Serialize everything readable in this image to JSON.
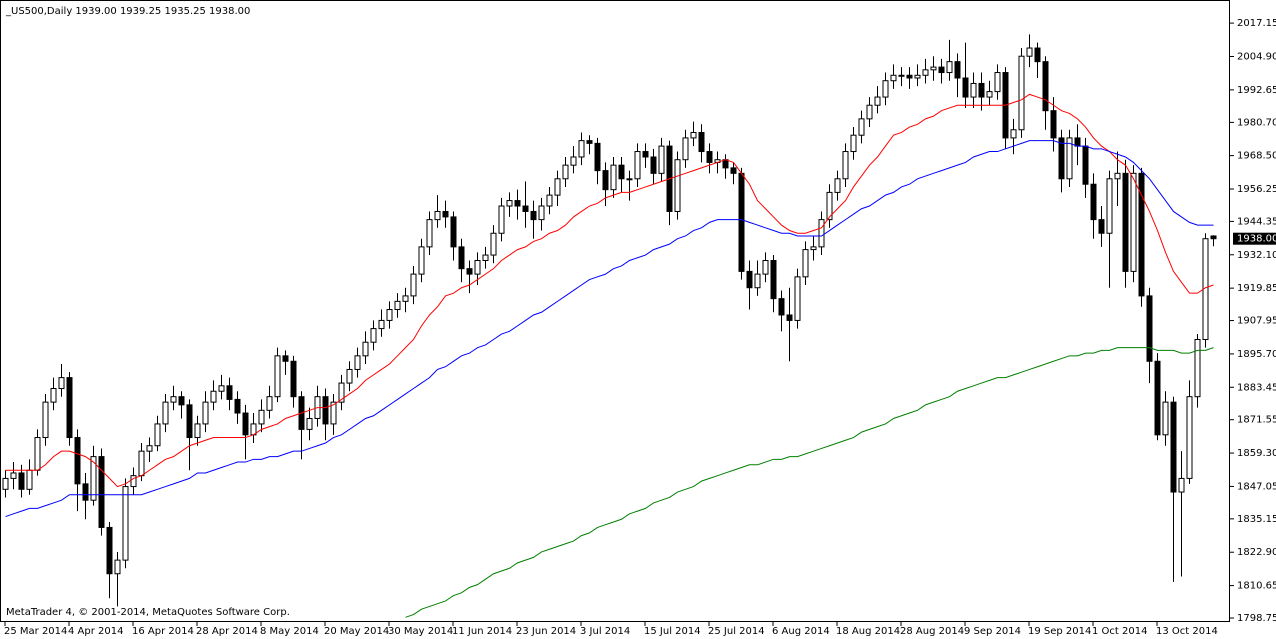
{
  "chart_data": {
    "type": "candlestick",
    "title": "_US500,Daily  1939.00 1939.25 1935.25 1938.00",
    "footnote": "MetaTrader 4, © 2001-2014, MetaQuotes Software Corp.",
    "bull_color": "#ffffff",
    "bear_color": "#000000",
    "ylim": [
      1797.65,
      2024.9
    ],
    "yticks": [
      2017.15,
      {
        "value": 2004.9,
        "label": "2004.90"
      },
      1992.65,
      {
        "value": 1980.7,
        "label": "1980.70"
      },
      {
        "value": 1968.5,
        "label": "1968.50"
      },
      1956.25,
      1944.35,
      {
        "value": 1932.1,
        "label": "1932.10"
      },
      1919.85,
      1907.95,
      {
        "value": 1895.7,
        "label": "1895.70"
      },
      1883.45,
      1871.55,
      {
        "value": 1859.3,
        "label": "1859.30"
      },
      1847.05,
      1835.15,
      {
        "value": 1822.9,
        "label": "1822.90"
      },
      1810.65,
      1798.75
    ],
    "last_price": {
      "value": 1938,
      "label": "1938.00"
    },
    "categories": [
      "25 Mar 2014",
      null,
      null,
      null,
      null,
      null,
      null,
      null,
      "4 Apr 2014",
      null,
      null,
      null,
      null,
      null,
      null,
      null,
      "16 Apr 2014",
      null,
      null,
      null,
      null,
      null,
      null,
      null,
      "28 Apr 2014",
      null,
      null,
      null,
      null,
      null,
      null,
      null,
      "8 May 2014",
      null,
      null,
      null,
      null,
      null,
      null,
      null,
      "20 May 2014",
      null,
      null,
      null,
      null,
      null,
      null,
      null,
      "30 May 2014",
      null,
      null,
      null,
      null,
      null,
      null,
      null,
      "11 Jun 2014",
      null,
      null,
      null,
      null,
      null,
      null,
      null,
      "23 Jun 2014",
      null,
      null,
      null,
      null,
      null,
      null,
      null,
      "3 Jul 2014",
      null,
      null,
      null,
      null,
      null,
      null,
      null,
      "15 Jul 2014",
      null,
      null,
      null,
      null,
      null,
      null,
      null,
      "25 Jul 2014",
      null,
      null,
      null,
      null,
      null,
      null,
      null,
      "6 Aug 2014",
      null,
      null,
      null,
      null,
      null,
      null,
      null,
      "18 Aug 2014",
      null,
      null,
      null,
      null,
      null,
      null,
      null,
      "28 Aug 2014",
      null,
      null,
      null,
      null,
      null,
      null,
      null,
      "9 Sep 2014",
      null,
      null,
      null,
      null,
      null,
      null,
      null,
      "19 Sep 2014",
      null,
      null,
      null,
      null,
      null,
      null,
      null,
      "1 Oct 2014",
      null,
      null,
      null,
      null,
      null,
      null,
      null,
      "13 Oct 2014",
      null,
      null,
      null,
      null,
      null,
      null,
      null
    ],
    "open": [
      1846,
      1850,
      1852,
      1846,
      1853,
      1865,
      1878,
      1883,
      1887,
      1865,
      1848,
      1842,
      1858,
      1832,
      1815,
      1820,
      1847,
      1851,
      1860,
      1862,
      1870,
      1878,
      1880,
      1877,
      1865,
      1870,
      1878,
      1882,
      1884,
      1879,
      1874,
      1866,
      1870,
      1875,
      1880,
      1895,
      1893,
      1880,
      1868,
      1872,
      1880,
      1870,
      1878,
      1885,
      1890,
      1895,
      1900,
      1905,
      1908,
      1912,
      1915,
      1917,
      1925,
      1935,
      1945,
      1948,
      1946,
      1935,
      1927,
      1925,
      1930,
      1932,
      1940,
      1950,
      1952,
      1950,
      1948,
      1945,
      1950,
      1954,
      1960,
      1965,
      1968,
      1974,
      1973,
      1963,
      1956,
      1965,
      1960,
      1960,
      1970,
      1968,
      1962,
      1972,
      1948,
      1967,
      1975,
      1977,
      1970,
      1966,
      1967,
      1964,
      1962,
      1926,
      1920,
      1925,
      1930,
      1916,
      1910,
      1908,
      1924,
      1934,
      1935,
      1945,
      1955,
      1960,
      1970,
      1976,
      1982,
      1987,
      1990,
      1996,
      1998,
      1998,
      1997,
      1998,
      2000,
      2001,
      1999,
      2003,
      1997,
      1990,
      1995,
      1990,
      1992,
      1999,
      1975,
      1978,
      2005,
      2008,
      2003,
      1985,
      1975,
      1960,
      1975,
      1972,
      1958,
      1945,
      1940,
      1960,
      1962,
      1926,
      1962,
      1917,
      1893,
      1866,
      1878,
      1845,
      1850,
      1880,
      1901,
      1939
    ],
    "high": [
      1853,
      1856,
      1855,
      1857,
      1868,
      1881,
      1887,
      1892,
      1889,
      1868,
      1852,
      1862,
      1861,
      1834,
      1823,
      1850,
      1854,
      1863,
      1865,
      1873,
      1881,
      1884,
      1882,
      1879,
      1873,
      1882,
      1886,
      1888,
      1887,
      1882,
      1877,
      1874,
      1879,
      1884,
      1898,
      1897,
      1895,
      1882,
      1876,
      1884,
      1883,
      1881,
      1888,
      1893,
      1898,
      1904,
      1908,
      1912,
      1915,
      1918,
      1920,
      1928,
      1938,
      1948,
      1954,
      1952,
      1948,
      1938,
      1930,
      1933,
      1935,
      1943,
      1953,
      1955,
      1956,
      1959,
      1952,
      1953,
      1957,
      1963,
      1968,
      1972,
      1977,
      1976,
      1975,
      1966,
      1968,
      1968,
      1963,
      1973,
      1973,
      1971,
      1975,
      1974,
      1970,
      1978,
      1981,
      1980,
      1973,
      1970,
      1969,
      1966,
      1964,
      1930,
      1930,
      1933,
      1932,
      1919,
      1920,
      1927,
      1937,
      1939,
      1948,
      1958,
      1963,
      1973,
      1979,
      1985,
      1990,
      1994,
      1999,
      2002,
      2001,
      2001,
      2002,
      2004,
      2005,
      2004,
      2011,
      2006,
      2010,
      1999,
      1999,
      1996,
      2002,
      2001,
      1982,
      2008,
      2013,
      2010,
      2005,
      1990,
      1978,
      1978,
      1980,
      1975,
      1962,
      1950,
      1963,
      1970,
      1967,
      1965,
      1964,
      1920,
      1896,
      1882,
      1880,
      1860,
      1886,
      1903,
      1940,
      1939.25
    ],
    "low": [
      1843,
      1846,
      1843,
      1844,
      1851,
      1862,
      1875,
      1880,
      1862,
      1838,
      1835,
      1840,
      1829,
      1806,
      1803,
      1817,
      1844,
      1849,
      1856,
      1860,
      1867,
      1875,
      1872,
      1853,
      1862,
      1867,
      1875,
      1879,
      1875,
      1870,
      1857,
      1863,
      1867,
      1872,
      1878,
      1888,
      1876,
      1857,
      1864,
      1869,
      1864,
      1866,
      1875,
      1882,
      1887,
      1892,
      1897,
      1902,
      1905,
      1909,
      1911,
      1914,
      1922,
      1932,
      1942,
      1942,
      1930,
      1922,
      1918,
      1921,
      1927,
      1929,
      1937,
      1946,
      1945,
      1942,
      1938,
      1941,
      1947,
      1950,
      1957,
      1962,
      1965,
      1969,
      1958,
      1950,
      1953,
      1955,
      1952,
      1957,
      1964,
      1958,
      1959,
      1943,
      1945,
      1964,
      1972,
      1966,
      1962,
      1962,
      1960,
      1958,
      1923,
      1912,
      1917,
      1922,
      1911,
      1904,
      1893,
      1905,
      1921,
      1930,
      1932,
      1942,
      1952,
      1957,
      1967,
      1973,
      1979,
      1984,
      1987,
      1993,
      1994,
      1993,
      1994,
      1995,
      1996,
      1995,
      1996,
      1990,
      1986,
      1986,
      1985,
      1987,
      1989,
      1971,
      1969,
      1975,
      2001,
      1997,
      1978,
      1970,
      1955,
      1957,
      1965,
      1953,
      1938,
      1935,
      1920,
      1950,
      1920,
      1922,
      1913,
      1885,
      1864,
      1862,
      1812,
      1814,
      1848,
      1876,
      1898,
      1935.25
    ],
    "close": [
      1850,
      1852,
      1846,
      1853,
      1865,
      1878,
      1883,
      1887,
      1865,
      1848,
      1842,
      1858,
      1832,
      1815,
      1820,
      1847,
      1851,
      1860,
      1862,
      1870,
      1878,
      1880,
      1877,
      1865,
      1870,
      1878,
      1882,
      1884,
      1879,
      1874,
      1866,
      1870,
      1875,
      1880,
      1895,
      1893,
      1880,
      1868,
      1872,
      1880,
      1870,
      1878,
      1885,
      1890,
      1895,
      1900,
      1905,
      1908,
      1912,
      1915,
      1917,
      1925,
      1935,
      1945,
      1948,
      1946,
      1935,
      1927,
      1925,
      1930,
      1932,
      1940,
      1950,
      1952,
      1950,
      1948,
      1945,
      1950,
      1954,
      1960,
      1965,
      1968,
      1974,
      1973,
      1963,
      1956,
      1965,
      1960,
      1960,
      1970,
      1968,
      1962,
      1972,
      1948,
      1967,
      1975,
      1977,
      1970,
      1966,
      1967,
      1964,
      1962,
      1926,
      1920,
      1925,
      1930,
      1916,
      1910,
      1908,
      1924,
      1934,
      1935,
      1945,
      1955,
      1960,
      1970,
      1976,
      1982,
      1987,
      1990,
      1996,
      1998,
      1998,
      1997,
      1998,
      2000,
      2001,
      1999,
      2003,
      1997,
      1990,
      1995,
      1990,
      1992,
      1999,
      1975,
      1978,
      2005,
      2008,
      2003,
      1985,
      1975,
      1960,
      1975,
      1972,
      1958,
      1945,
      1940,
      1960,
      1962,
      1926,
      1962,
      1917,
      1893,
      1866,
      1878,
      1845,
      1850,
      1880,
      1901,
      1938,
      1938
    ],
    "lines": [
      {
        "color": "#ff0000",
        "values": [
          1853,
          1853,
          1853,
          1853,
          1853,
          1855,
          1858,
          1860,
          1860,
          1859,
          1858,
          1856,
          1853,
          1850,
          1847,
          1848,
          1850,
          1851,
          1853,
          1855,
          1857,
          1858,
          1860,
          1862,
          1863,
          1864,
          1865,
          1865,
          1865,
          1865,
          1865,
          1866,
          1868,
          1869,
          1870,
          1872,
          1873,
          1874,
          1875,
          1876,
          1876,
          1877,
          1879,
          1881,
          1883,
          1886,
          1888,
          1890,
          1892,
          1895,
          1898,
          1901,
          1906,
          1910,
          1913,
          1917,
          1918,
          1920,
          1921,
          1923,
          1925,
          1927,
          1930,
          1932,
          1934,
          1935,
          1937,
          1938,
          1940,
          1941,
          1943,
          1946,
          1948,
          1950,
          1951,
          1953,
          1954,
          1955,
          1955,
          1956,
          1957,
          1958,
          1959,
          1960,
          1961,
          1962,
          1963,
          1964,
          1965,
          1966,
          1967,
          1966,
          1962,
          1958,
          1952,
          1949,
          1946,
          1943,
          1941,
          1940,
          1940,
          1941,
          1942,
          1946,
          1949,
          1952,
          1957,
          1961,
          1965,
          1968,
          1972,
          1976,
          1977,
          1979,
          1980,
          1982,
          1983,
          1985,
          1986,
          1987,
          1987,
          1987,
          1987,
          1987,
          1987,
          1987,
          1988,
          1989,
          1991,
          1990,
          1989,
          1987,
          1985,
          1984,
          1982,
          1979,
          1975,
          1972,
          1970,
          1967,
          1965,
          1960,
          1954,
          1948,
          1941,
          1933,
          1926,
          1922,
          1918,
          1918,
          1920,
          1921
        ]
      },
      {
        "color": "#0000ff",
        "values": [
          1836,
          1837,
          1838,
          1839,
          1839,
          1840,
          1841,
          1842,
          1844,
          1844,
          1844,
          1844,
          1844,
          1844,
          1844,
          1844,
          1844,
          1844,
          1845,
          1846,
          1847,
          1848,
          1849,
          1850,
          1852,
          1852,
          1853,
          1854,
          1855,
          1856,
          1856,
          1857,
          1857,
          1858,
          1858,
          1859,
          1860,
          1860,
          1861,
          1862,
          1863,
          1865,
          1866,
          1868,
          1870,
          1872,
          1873,
          1875,
          1877,
          1879,
          1881,
          1883,
          1885,
          1887,
          1890,
          1891,
          1893,
          1895,
          1896,
          1898,
          1899,
          1901,
          1903,
          1904,
          1906,
          1908,
          1910,
          1911,
          1913,
          1915,
          1917,
          1919,
          1921,
          1923,
          1924,
          1925,
          1927,
          1928,
          1930,
          1931,
          1932,
          1934,
          1935,
          1936,
          1938,
          1939,
          1941,
          1942,
          1944,
          1945,
          1945,
          1945,
          1945,
          1944,
          1943,
          1942,
          1941,
          1940,
          1940,
          1939,
          1939,
          1939,
          1939,
          1941,
          1943,
          1945,
          1947,
          1949,
          1950,
          1952,
          1954,
          1955,
          1957,
          1958,
          1960,
          1961,
          1962,
          1963,
          1964,
          1965,
          1966,
          1968,
          1969,
          1970,
          1970,
          1971,
          1972,
          1973,
          1974,
          1974,
          1974,
          1974,
          1973,
          1973,
          1972,
          1972,
          1971,
          1971,
          1970,
          1969,
          1968,
          1966,
          1963,
          1960,
          1956,
          1952,
          1948,
          1946,
          1944,
          1943,
          1943,
          1943
        ]
      },
      {
        "color": "#008000",
        "values": [
          null,
          null,
          null,
          null,
          null,
          null,
          null,
          null,
          null,
          null,
          null,
          null,
          null,
          null,
          null,
          null,
          null,
          null,
          null,
          null,
          null,
          null,
          null,
          null,
          null,
          null,
          null,
          null,
          null,
          null,
          null,
          null,
          null,
          null,
          null,
          null,
          null,
          null,
          null,
          null,
          null,
          null,
          null,
          null,
          null,
          null,
          null,
          null,
          null,
          null,
          1799,
          1800,
          1802,
          1803,
          1804,
          1805,
          1807,
          1808,
          1810,
          1811,
          1813,
          1815,
          1816,
          1817,
          1819,
          1820,
          1821,
          1823,
          1824,
          1825,
          1826,
          1827,
          1829,
          1830,
          1832,
          1833,
          1834,
          1835,
          1837,
          1838,
          1839,
          1841,
          1842,
          1843,
          1845,
          1846,
          1847,
          1849,
          1850,
          1851,
          1852,
          1853,
          1854,
          1855,
          1855,
          1856,
          1857,
          1857,
          1858,
          1858,
          1859,
          1860,
          1861,
          1862,
          1863,
          1864,
          1865,
          1867,
          1868,
          1869,
          1870,
          1872,
          1873,
          1874,
          1875,
          1877,
          1878,
          1879,
          1880,
          1882,
          1883,
          1884,
          1885,
          1886,
          1887,
          1887,
          1888,
          1889,
          1890,
          1891,
          1892,
          1893,
          1894,
          1895,
          1895,
          1896,
          1896,
          1897,
          1897,
          1898,
          1898,
          1898,
          1898,
          1898,
          1897,
          1897,
          1897,
          1896,
          1896,
          1897,
          1897,
          1898
        ]
      }
    ]
  }
}
